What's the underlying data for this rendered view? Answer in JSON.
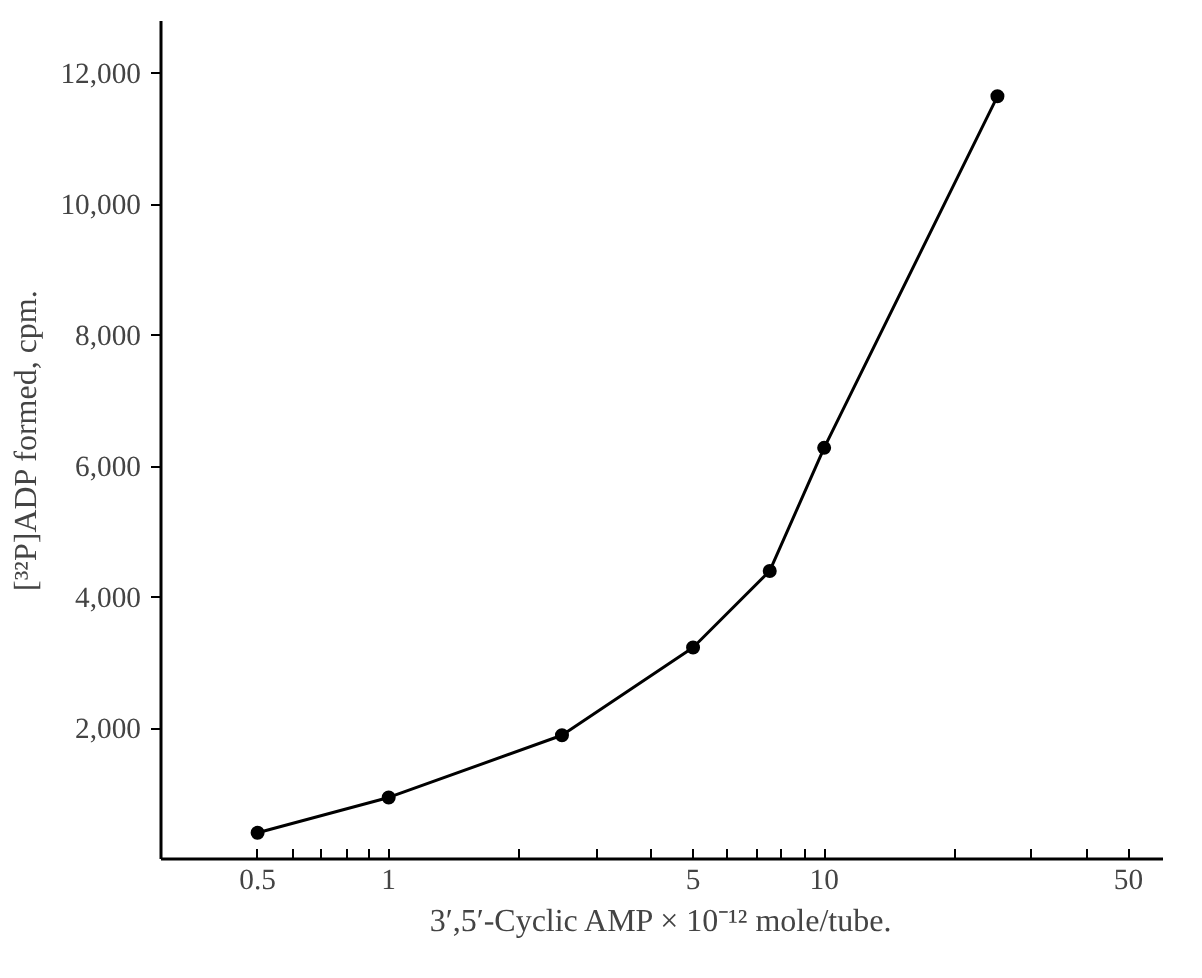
{
  "chart_data": {
    "type": "line",
    "xlabel": "3′,5′-Cyclic AMP × 10⁻¹² mole/tube.",
    "ylabel": "[³²P]ADP formed, cpm.",
    "x": [
      0.5,
      1,
      2.5,
      5,
      7.5,
      10,
      25
    ],
    "series": [
      {
        "color": "#000000",
        "values": [
          400,
          940,
          1890,
          3230,
          4400,
          6280,
          11650
        ]
      }
    ],
    "log": "x",
    "xlim": [
      0.3,
      60
    ],
    "ylim": [
      0,
      12800
    ],
    "xticks": [
      0.5,
      {
        "value": 0.6,
        "label": null
      },
      {
        "value": 0.7,
        "label": null
      },
      {
        "value": 0.8,
        "label": null
      },
      {
        "value": 0.9,
        "label": null
      },
      1,
      {
        "value": 2,
        "label": null
      },
      {
        "value": 3,
        "label": null
      },
      {
        "value": 4,
        "label": null
      },
      5,
      {
        "value": 6,
        "label": null
      },
      {
        "value": 7,
        "label": null
      },
      {
        "value": 8,
        "label": null
      },
      {
        "value": 9,
        "label": null
      },
      10,
      {
        "value": 20,
        "label": null
      },
      {
        "value": 30,
        "label": null
      },
      {
        "value": 40,
        "label": null
      },
      50
    ],
    "yticks": [
      {
        "value": 2000,
        "label": "2,000"
      },
      {
        "value": 4000,
        "label": "4,000"
      },
      {
        "value": 6000,
        "label": "6,000"
      },
      {
        "value": 8000,
        "label": "8,000"
      },
      {
        "value": 10000,
        "label": "10,000"
      },
      {
        "value": 12000,
        "label": "12,000"
      }
    ],
    "grid": false,
    "marker": "circle",
    "line_style": "solid"
  }
}
